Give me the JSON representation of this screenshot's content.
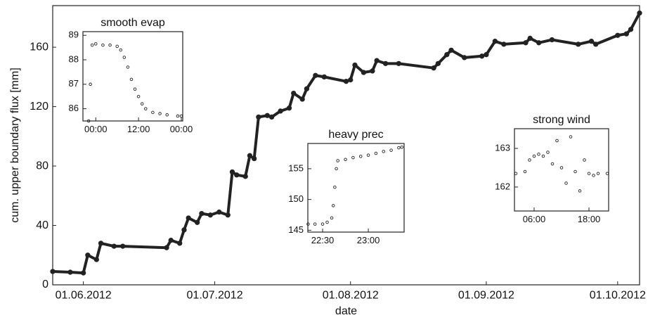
{
  "chart_data": [
    {
      "type": "line",
      "xlabel": "date",
      "ylabel": "cum. upper boundary flux [mm]",
      "color": "#222",
      "x": [
        "2012-05-25",
        "2012-05-29",
        "2012-06-01",
        "2012-06-02",
        "2012-06-04",
        "2012-06-05",
        "2012-06-08",
        "2012-06-10",
        "2012-06-20",
        "2012-06-21",
        "2012-06-23",
        "2012-06-24",
        "2012-06-25",
        "2012-06-27",
        "2012-06-28",
        "2012-06-30",
        "2012-07-02",
        "2012-07-04",
        "2012-07-05",
        "2012-07-06",
        "2012-07-08",
        "2012-07-09",
        "2012-07-10",
        "2012-07-11",
        "2012-07-13",
        "2012-07-14",
        "2012-07-16",
        "2012-07-18",
        "2012-07-19",
        "2012-07-21",
        "2012-07-22",
        "2012-07-24",
        "2012-07-26",
        "2012-07-31",
        "2012-08-01",
        "2012-08-02",
        "2012-08-04",
        "2012-08-06",
        "2012-08-07",
        "2012-08-09",
        "2012-08-12",
        "2012-08-20",
        "2012-08-21",
        "2012-08-23",
        "2012-08-24",
        "2012-08-27",
        "2012-08-31",
        "2012-09-01",
        "2012-09-03",
        "2012-09-05",
        "2012-09-10",
        "2012-09-11",
        "2012-09-13",
        "2012-09-16",
        "2012-09-22",
        "2012-09-25",
        "2012-09-26",
        "2012-10-01",
        "2012-10-03",
        "2012-10-04",
        "2012-10-06"
      ],
      "values": [
        9,
        8.5,
        8,
        20,
        17,
        28,
        26,
        26,
        25,
        30,
        28,
        37,
        45,
        42,
        48,
        47,
        49,
        47,
        76,
        74,
        73,
        87,
        85,
        113,
        114,
        113,
        117,
        119,
        129,
        125,
        132,
        141,
        140,
        137,
        138,
        148,
        143,
        144,
        151,
        149,
        149,
        146,
        149,
        155,
        158,
        153,
        154,
        155,
        164,
        162,
        163,
        166,
        163,
        165,
        162,
        164,
        162,
        168,
        169,
        172,
        183
      ],
      "xlim": [
        "2012-05-25",
        "2012-10-06"
      ],
      "xticks": [
        {
          "value": "2012-06-01",
          "label": "01.06.2012"
        },
        {
          "value": "2012-07-01",
          "label": "01.07.2012"
        },
        {
          "value": "2012-08-01",
          "label": "01.08.2012"
        },
        {
          "value": "2012-09-01",
          "label": "01.09.2012"
        },
        {
          "value": "2012-10-01",
          "label": "01.10.2012"
        }
      ],
      "ylim": [
        0,
        188
      ],
      "yticks": [
        0,
        40,
        80,
        120,
        160
      ]
    },
    {
      "type": "scatter",
      "title": "smooth evap",
      "color": "#222",
      "x": [
        -2,
        -1.5,
        -1,
        0,
        2,
        4,
        6,
        7,
        8,
        9,
        10,
        11,
        12,
        13,
        14,
        16,
        18,
        20,
        23,
        24
      ],
      "values": [
        85.5,
        87,
        88.6,
        88.65,
        88.6,
        88.6,
        88.55,
        88.4,
        88.1,
        87.7,
        87.2,
        86.8,
        86.5,
        86.2,
        86,
        85.85,
        85.8,
        85.75,
        85.7,
        85.7
      ],
      "xlim": [
        -3.6,
        24.4
      ],
      "xticks": [
        {
          "value": 0,
          "label": "00:00"
        },
        {
          "value": 12,
          "label": "12:00"
        },
        {
          "value": 24,
          "label": "00:00"
        }
      ],
      "ylim": [
        85.5,
        89.15
      ],
      "yticks": [
        86,
        87,
        88,
        89
      ]
    },
    {
      "type": "scatter",
      "title": "heavy prec",
      "color": "#222",
      "x": [
        20.5,
        25,
        30,
        33,
        36,
        37,
        38,
        39,
        40,
        45,
        50,
        55,
        60,
        65,
        70,
        75,
        80,
        82
      ],
      "values": [
        146,
        146,
        146,
        146.3,
        147,
        149,
        152,
        155,
        156.3,
        156.5,
        156.8,
        157,
        157.2,
        157.5,
        157.8,
        158,
        158.4,
        158.5
      ],
      "xlim": [
        20.3,
        83.5
      ],
      "xticks": [
        {
          "value": 30,
          "label": "22:30"
        },
        {
          "value": 60,
          "label": "23:00"
        }
      ],
      "ylim": [
        144.7,
        159.1
      ],
      "yticks": [
        145,
        150,
        155
      ]
    },
    {
      "type": "scatter",
      "title": "strong wind",
      "color": "#222",
      "x": [
        2,
        4,
        5,
        6,
        7,
        8,
        9,
        10,
        11,
        12,
        13,
        14,
        15,
        16,
        17,
        18,
        19,
        20,
        22
      ],
      "values": [
        162.35,
        162.4,
        162.7,
        162.8,
        162.85,
        162.8,
        162.9,
        162.6,
        163.2,
        162.5,
        162.1,
        163.3,
        162.4,
        161.9,
        162.7,
        162.35,
        162.3,
        162.35,
        162.35
      ],
      "xlim": [
        1.7,
        22.3
      ],
      "xticks": [
        {
          "value": 6,
          "label": "06:00"
        },
        {
          "value": 18,
          "label": "18:00"
        }
      ],
      "ylim": [
        161.38,
        163.51
      ],
      "yticks": [
        162,
        163
      ]
    }
  ]
}
